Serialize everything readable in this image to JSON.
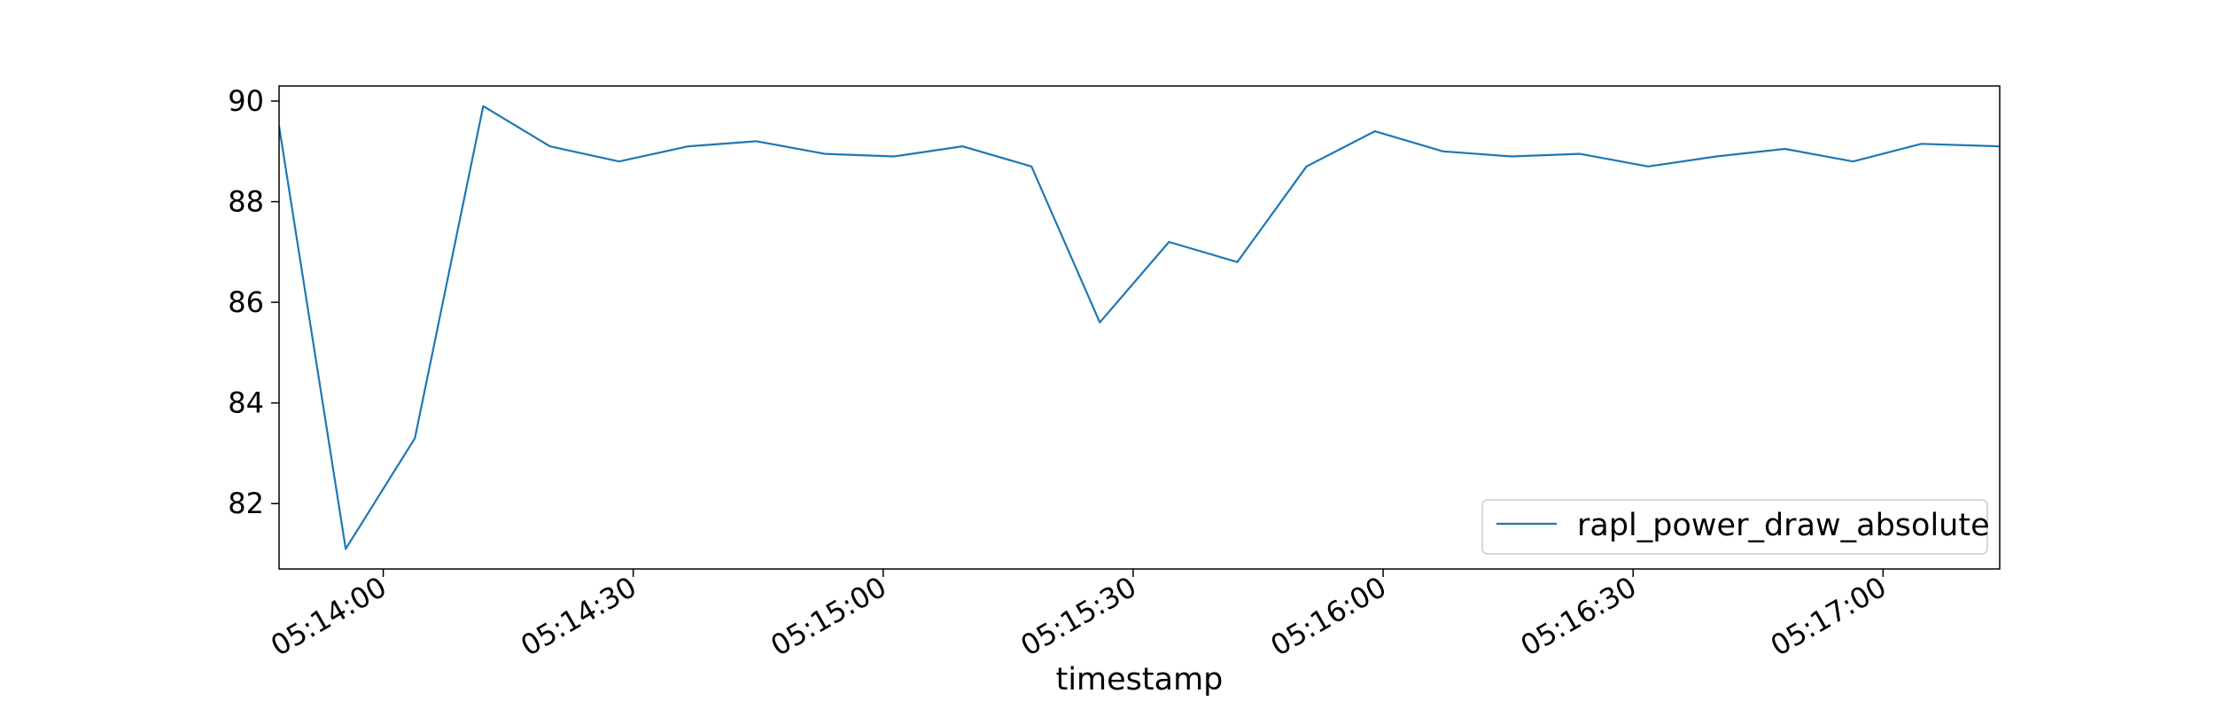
{
  "chart_data": {
    "type": "line",
    "title": "",
    "xlabel": "timestamp",
    "ylabel": "",
    "x_tick_labels": [
      "05:14:00",
      "05:14:30",
      "05:15:00",
      "05:15:30",
      "05:16:00",
      "05:16:30",
      "05:17:00"
    ],
    "y_tick_labels": [
      "82",
      "84",
      "86",
      "88",
      "90"
    ],
    "y_ticks": [
      82,
      84,
      86,
      88,
      90
    ],
    "xlim": [
      "05:13:47.5",
      "05:17:14"
    ],
    "ylim": [
      80.7,
      90.3
    ],
    "grid": false,
    "legend_position": "lower-right",
    "series": [
      {
        "name": "rapl_power_draw_absolute",
        "color": "#1f77b4",
        "x": [
          "05:13:47.5",
          "05:13:55.5",
          "05:14:03.8",
          "05:14:12",
          "05:14:20",
          "05:14:28.3",
          "05:14:36.6",
          "05:14:44.8",
          "05:14:53",
          "05:15:01.3",
          "05:15:09.5",
          "05:15:17.8",
          "05:15:26",
          "05:15:34.3",
          "05:15:42.5",
          "05:15:50.8",
          "05:15:59",
          "05:16:07.2",
          "05:16:15.4",
          "05:16:23.6",
          "05:16:31.8",
          "05:16:40",
          "05:16:48.2",
          "05:16:56.4",
          "05:17:04.6",
          "05:17:14"
        ],
        "values": [
          89.5,
          81.1,
          83.3,
          89.9,
          89.1,
          88.8,
          89.1,
          89.2,
          88.95,
          88.9,
          89.1,
          88.7,
          85.6,
          87.2,
          86.8,
          88.7,
          89.4,
          89.0,
          88.9,
          88.95,
          88.7,
          88.9,
          89.05,
          88.8,
          89.15,
          89.1
        ]
      }
    ]
  }
}
